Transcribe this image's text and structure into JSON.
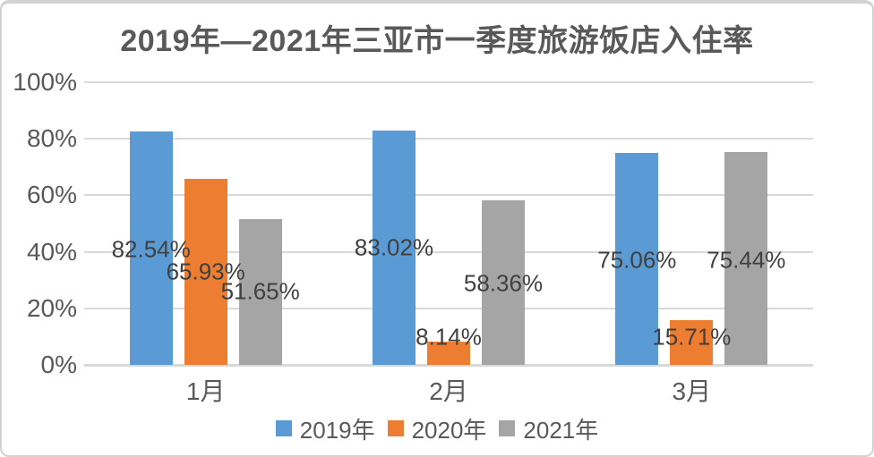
{
  "window": {
    "background": "#ffffff",
    "border_color": "#d2d2d2"
  },
  "chart_data": {
    "type": "bar",
    "title": "2019年—2021年三亚市一季度旅游饭店入住率",
    "categories": [
      "1月",
      "2月",
      "3月"
    ],
    "series": [
      {
        "name": "2019年",
        "color": "#5B9BD5",
        "values": [
          82.54,
          83.02,
          75.06
        ],
        "labels": [
          "82.54%",
          "83.02%",
          "75.06%"
        ]
      },
      {
        "name": "2020年",
        "color": "#ED7D31",
        "values": [
          65.93,
          8.14,
          15.71
        ],
        "labels": [
          "65.93%",
          "8.14%",
          "15.71%"
        ]
      },
      {
        "name": "2021年",
        "color": "#A5A5A5",
        "values": [
          51.65,
          58.36,
          75.44
        ],
        "labels": [
          "51.65%",
          "58.36%",
          "75.44%"
        ]
      }
    ],
    "y_axis": {
      "min": 0,
      "max": 100,
      "step": 20,
      "ticks": [
        {
          "value": 0,
          "label": "0%"
        },
        {
          "value": 20,
          "label": "20%"
        },
        {
          "value": 40,
          "label": "40%"
        },
        {
          "value": 60,
          "label": "60%"
        },
        {
          "value": 80,
          "label": "80%"
        },
        {
          "value": 100,
          "label": "100%"
        }
      ]
    },
    "grid": true,
    "legend_position": "bottom",
    "style": {
      "grid_color": "#D9D9D9",
      "axis_text_color": "#595959",
      "data_label_color": "#404040",
      "title_color": "#595959"
    }
  }
}
